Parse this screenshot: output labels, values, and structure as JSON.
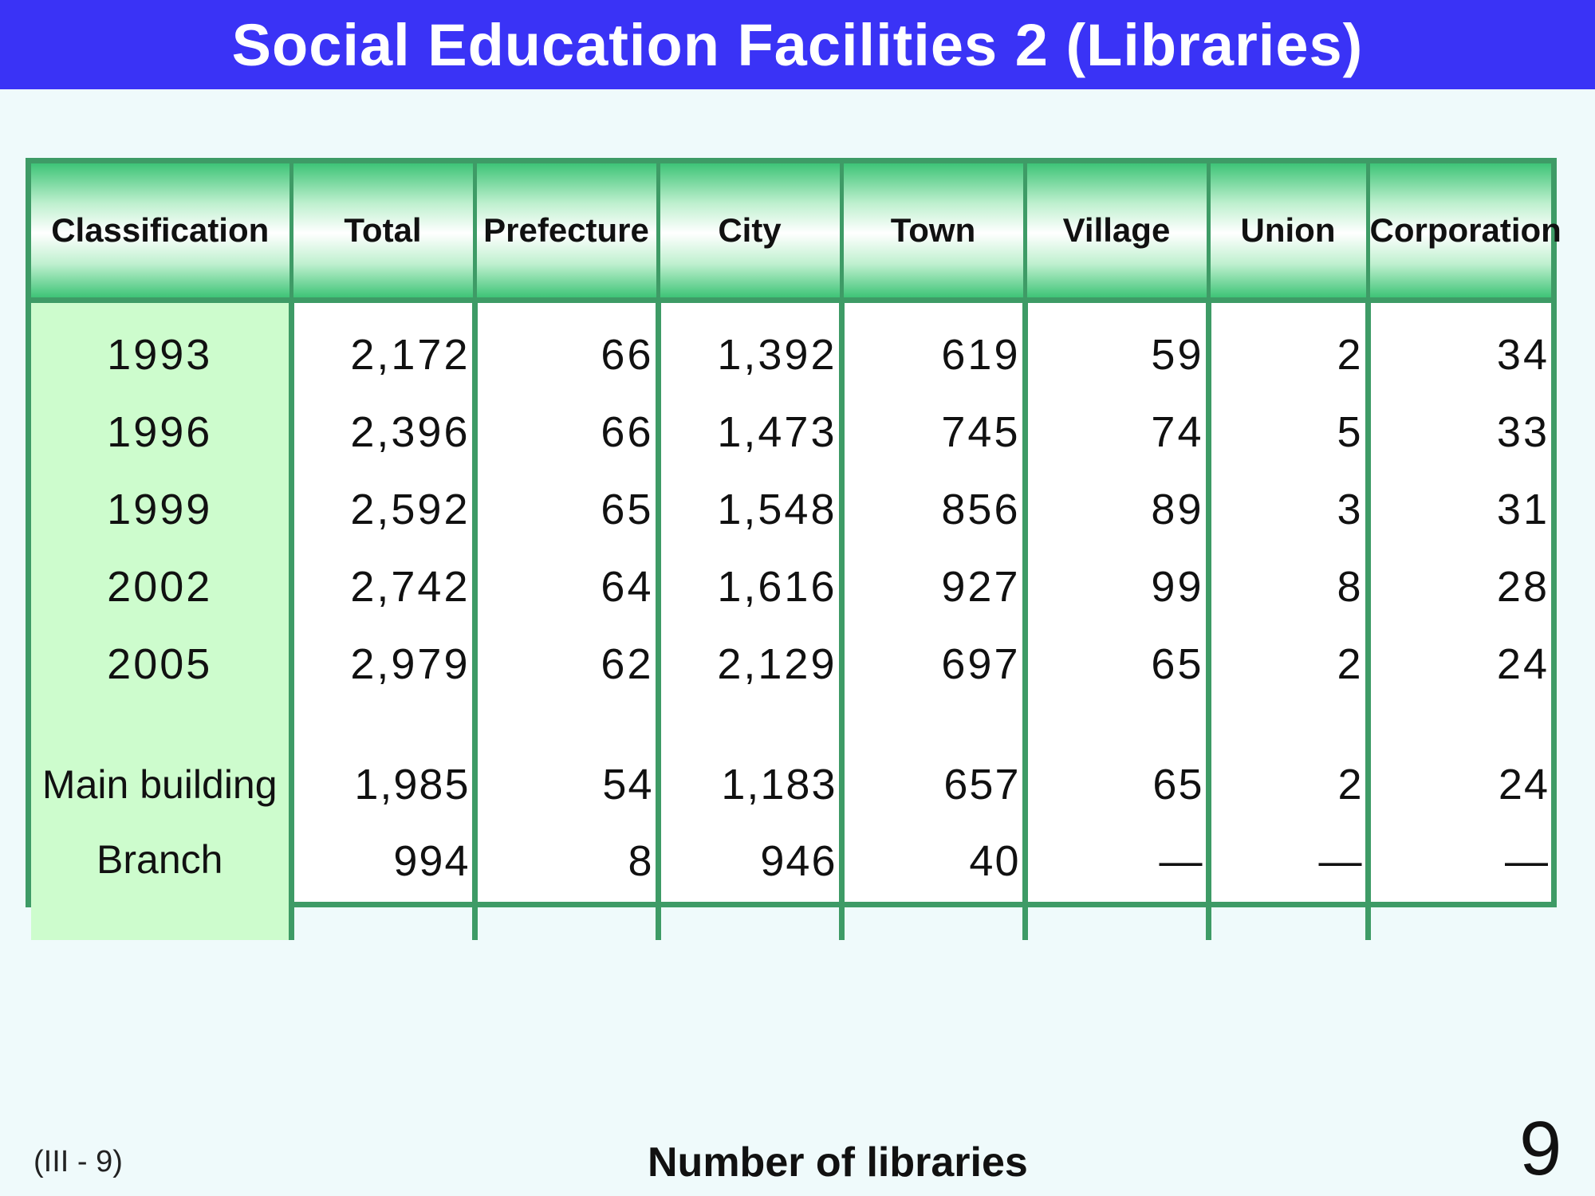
{
  "title": "Social Education Facilities 2 (Libraries)",
  "table": {
    "headers": [
      "Classification",
      "Total",
      "Prefecture",
      "City",
      "Town",
      "Village",
      "Union",
      "Corporation"
    ],
    "rows": [
      [
        "1993",
        "2,172",
        "66",
        "1,392",
        "619",
        "59",
        "2",
        "34"
      ],
      [
        "1996",
        "2,396",
        "66",
        "1,473",
        "745",
        "74",
        "5",
        "33"
      ],
      [
        "1999",
        "2,592",
        "65",
        "1,548",
        "856",
        "89",
        "3",
        "31"
      ],
      [
        "2002",
        "2,742",
        "64",
        "1,616",
        "927",
        "99",
        "8",
        "28"
      ],
      [
        "2005",
        "2,979",
        "62",
        "2,129",
        "697",
        "65",
        "2",
        "24"
      ],
      [
        "Main building",
        "1,985",
        "54",
        "1,183",
        "657",
        "65",
        "2",
        "24"
      ],
      [
        "Branch",
        "994",
        "8",
        "946",
        "40",
        "—",
        "—",
        "—"
      ]
    ]
  },
  "footer": {
    "code": "(III - 9)",
    "caption": "Number of libraries",
    "page_number": "9"
  },
  "colors": {
    "title_bar": "#3a33f6",
    "table_border": "#3e9b66",
    "header_gradient": "#3ec477",
    "first_column": "#cdfccd",
    "page_background": "#effafb"
  }
}
